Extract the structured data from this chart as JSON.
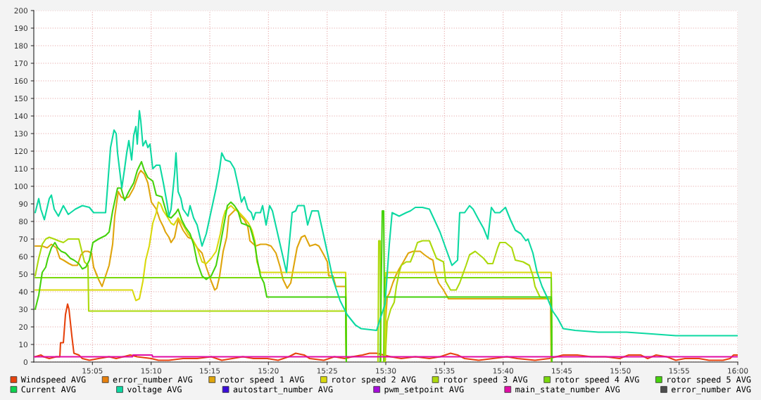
{
  "chart_data": {
    "type": "line",
    "xlim": [
      15.0,
      16.0
    ],
    "xticks": [
      {
        "value": 15.0833,
        "label": "15:05"
      },
      {
        "value": 15.1667,
        "label": "15:10"
      },
      {
        "value": 15.25,
        "label": "15:15"
      },
      {
        "value": 15.3333,
        "label": "15:20"
      },
      {
        "value": 15.4167,
        "label": "15:25"
      },
      {
        "value": 15.5,
        "label": "15:30"
      },
      {
        "value": 15.5833,
        "label": "15:35"
      },
      {
        "value": 15.6667,
        "label": "15:40"
      },
      {
        "value": 15.75,
        "label": "15:45"
      },
      {
        "value": 15.8333,
        "label": "15:50"
      },
      {
        "value": 15.9167,
        "label": "15:55"
      },
      {
        "value": 16.0,
        "label": "16:00"
      }
    ],
    "ylim": [
      0,
      200
    ],
    "yticks": [
      0,
      10,
      20,
      30,
      40,
      50,
      60,
      70,
      80,
      90,
      100,
      110,
      120,
      130,
      140,
      150,
      160,
      170,
      180,
      190,
      200
    ],
    "grid": true,
    "legend": "bottom",
    "series": [
      {
        "name": "Windspeed AVG",
        "color": "#e6420c",
        "x": [
          15.002,
          15.01,
          15.014,
          15.022,
          15.032,
          15.037,
          15.038,
          15.042,
          15.045,
          15.048,
          15.05,
          15.054,
          15.057,
          15.064,
          15.069,
          15.079,
          15.092,
          15.107,
          15.117,
          15.127,
          15.137,
          15.147,
          15.167,
          15.177,
          15.192,
          15.212,
          15.232,
          15.252,
          15.267,
          15.282,
          15.297,
          15.312,
          15.332,
          15.347,
          15.362,
          15.372,
          15.384,
          15.392,
          15.412,
          15.427,
          15.442,
          15.452,
          15.467,
          15.477,
          15.487,
          15.497,
          15.507,
          15.522,
          15.542,
          15.562,
          15.577,
          15.592,
          15.602,
          15.612,
          15.632,
          15.652,
          15.672,
          15.687,
          15.712,
          15.732,
          15.752,
          15.772,
          15.792,
          15.812,
          15.832,
          15.845,
          15.862,
          15.872,
          15.884,
          15.899,
          15.912,
          15.925,
          15.945,
          15.959,
          15.979,
          15.989,
          15.994,
          16.0
        ],
        "values": [
          3,
          4,
          3,
          2,
          3,
          3,
          11,
          11,
          27,
          33,
          30,
          15,
          5,
          4,
          2,
          1,
          2,
          3,
          2,
          3,
          4,
          3,
          2,
          1,
          1,
          2,
          2,
          3,
          1,
          2,
          3,
          2,
          2,
          1,
          3,
          5,
          4,
          2,
          1,
          3,
          2,
          3,
          4,
          5,
          5,
          4,
          3,
          2,
          3,
          2,
          3,
          5,
          4,
          2,
          1,
          2,
          3,
          2,
          1,
          2,
          4,
          4,
          3,
          3,
          2,
          4,
          4,
          2,
          4,
          3,
          1,
          2,
          2,
          1,
          1,
          2,
          4,
          4
        ]
      },
      {
        "name": "error_number AVG",
        "color": "#e8800c"
      },
      {
        "name": "rotor speed 1 AVG",
        "color": "#dfa50c",
        "x": [
          15.002,
          15.012,
          15.019,
          15.025,
          15.032,
          15.037,
          15.042,
          15.05,
          15.055,
          15.062,
          15.067,
          15.072,
          15.077,
          15.082,
          15.085,
          15.092,
          15.097,
          15.102,
          15.107,
          15.112,
          15.115,
          15.12,
          15.124,
          15.129,
          15.135,
          15.142,
          15.149,
          15.152,
          15.157,
          15.162,
          15.167,
          15.174,
          15.179,
          15.184,
          15.187,
          15.192,
          15.195,
          15.2,
          15.205,
          15.212,
          15.219,
          15.225,
          15.232,
          15.239,
          15.245,
          15.252,
          15.257,
          15.26,
          15.264,
          15.269,
          15.274,
          15.277,
          15.282,
          15.287,
          15.29,
          15.294,
          15.299,
          15.304,
          15.307,
          15.315,
          15.322,
          15.33,
          15.337,
          15.344,
          15.35,
          15.354,
          15.36,
          15.365,
          15.369,
          15.374,
          15.38,
          15.385,
          15.392,
          15.4,
          15.405,
          15.412,
          15.417,
          15.419,
          15.425,
          15.429,
          15.443,
          15.444,
          15.47,
          15.499,
          15.5,
          15.502,
          15.505,
          15.51,
          15.514,
          15.519,
          15.525,
          15.532,
          15.539,
          15.549,
          15.555,
          15.562,
          15.567,
          15.57,
          15.575,
          15.582,
          15.589,
          15.734,
          15.735
        ],
        "values": [
          66,
          66,
          65,
          67,
          65,
          59,
          58,
          56,
          55,
          55,
          61,
          63,
          63,
          62,
          54,
          47,
          43,
          49,
          55,
          67,
          83,
          97,
          94,
          93,
          94,
          99,
          107,
          109,
          107,
          102,
          91,
          87,
          81,
          77,
          74,
          71,
          68,
          71,
          81,
          75,
          71,
          70,
          65,
          62,
          54,
          46,
          41,
          42,
          49,
          63,
          71,
          83,
          85,
          87,
          86,
          83,
          81,
          77,
          69,
          66,
          67,
          67,
          66,
          62,
          54,
          47,
          42,
          45,
          54,
          65,
          71,
          72,
          66,
          67,
          66,
          61,
          57,
          49,
          49,
          43,
          43,
          0,
          null,
          0,
          25,
          37,
          39,
          45,
          49,
          53,
          57,
          62,
          63,
          63,
          61,
          59,
          58,
          51,
          45,
          41,
          36,
          36,
          0
        ]
      },
      {
        "name": "rotor speed 2 AVG",
        "color": "#d9d90c",
        "x": [
          15.002,
          15.14,
          15.145,
          15.15,
          15.155,
          15.159,
          15.164,
          15.169,
          15.174,
          15.177,
          15.18,
          15.184,
          15.189,
          15.195,
          15.199,
          15.205,
          15.212,
          15.219,
          15.225,
          15.232,
          15.239,
          15.245,
          15.252,
          15.259,
          15.265,
          15.269,
          15.272,
          15.28,
          15.285,
          15.292,
          15.299,
          15.305,
          15.31,
          15.314,
          15.317,
          15.322,
          15.443,
          15.444,
          15.47,
          15.499,
          15.5,
          15.735,
          15.736
        ],
        "values": [
          41,
          41,
          35,
          36,
          46,
          58,
          66,
          79,
          85,
          91,
          90,
          86,
          83,
          79,
          78,
          82,
          78,
          73,
          70,
          65,
          57,
          56,
          59,
          63,
          73,
          82,
          86,
          89,
          87,
          85,
          82,
          79,
          75,
          69,
          57,
          51,
          51,
          0,
          null,
          0,
          51,
          51,
          0
        ]
      },
      {
        "name": "rotor speed 3 AVG",
        "color": "#acd90c",
        "x": [
          15.002,
          15.007,
          15.012,
          15.017,
          15.022,
          15.029,
          15.035,
          15.042,
          15.049,
          15.059,
          15.064,
          15.067,
          15.072,
          15.077,
          15.078,
          15.443,
          15.444,
          15.47,
          15.489,
          15.49,
          15.492,
          15.493,
          15.496,
          15.499,
          15.502,
          15.507,
          15.512,
          15.515,
          15.519,
          15.522,
          15.529,
          15.535,
          15.54,
          15.545,
          15.552,
          15.562,
          15.572,
          15.582,
          15.585,
          15.592,
          15.6,
          15.605,
          15.614,
          15.619,
          15.627,
          15.639,
          15.645,
          15.652,
          15.659,
          15.662,
          15.67,
          15.679,
          15.684,
          15.695,
          15.704,
          15.709,
          15.712,
          15.719,
          15.732,
          15.735,
          15.736
        ],
        "values": [
          49,
          59,
          67,
          70,
          71,
          70,
          69,
          68,
          70,
          70,
          70,
          65,
          57,
          55,
          29,
          29,
          0,
          null,
          0,
          69,
          69,
          0,
          null,
          0,
          23,
          30,
          34,
          43,
          51,
          55,
          57,
          57,
          62,
          68,
          69,
          69,
          59,
          57,
          46,
          41,
          41,
          45,
          55,
          61,
          63,
          59,
          56,
          56,
          65,
          68,
          68,
          65,
          58,
          57,
          55,
          49,
          43,
          37,
          36,
          36,
          0
        ]
      },
      {
        "name": "rotor speed 4 AVG",
        "color": "#7ad90c",
        "x": [
          15.002,
          15.443,
          15.444,
          15.47,
          15.497,
          15.498,
          15.735,
          15.736
        ],
        "values": [
          48,
          48,
          0,
          null,
          0,
          48,
          48,
          0
        ]
      },
      {
        "name": "rotor speed 5 AVG",
        "color": "#45d20c",
        "x": [
          15.002,
          15.007,
          15.012,
          15.017,
          15.02,
          15.025,
          15.03,
          15.034,
          15.039,
          15.045,
          15.052,
          15.057,
          15.064,
          15.069,
          15.074,
          15.079,
          15.084,
          15.092,
          15.102,
          15.107,
          15.112,
          15.119,
          15.124,
          15.129,
          15.135,
          15.142,
          15.147,
          15.153,
          15.157,
          15.162,
          15.169,
          15.174,
          15.182,
          15.187,
          15.19,
          15.195,
          15.202,
          15.205,
          15.21,
          15.215,
          15.222,
          15.227,
          15.232,
          15.239,
          15.245,
          15.252,
          15.259,
          15.265,
          15.27,
          15.275,
          15.28,
          15.285,
          15.29,
          15.295,
          15.302,
          15.307,
          15.31,
          15.314,
          15.317,
          15.322,
          15.327,
          15.331,
          15.443,
          15.444,
          15.47,
          15.492,
          15.495,
          15.497,
          15.498,
          15.735,
          15.736
        ],
        "values": [
          30,
          38,
          51,
          54,
          59,
          65,
          68,
          65,
          63,
          62,
          59,
          58,
          56,
          53,
          54,
          58,
          68,
          70,
          72,
          74,
          86,
          99,
          99,
          92,
          97,
          102,
          109,
          114,
          109,
          105,
          103,
          95,
          94,
          87,
          83,
          82,
          85,
          87,
          81,
          77,
          73,
          67,
          57,
          49,
          47,
          49,
          55,
          67,
          78,
          89,
          91,
          89,
          86,
          79,
          78,
          77,
          73,
          67,
          59,
          49,
          45,
          37,
          37,
          0,
          null,
          0,
          86,
          86,
          37,
          37,
          0
        ]
      },
      {
        "name": "Current AVG",
        "color": "#0cd24e"
      },
      {
        "name": "voltage AVG",
        "color": "#0cd9a2",
        "x": [
          15.002,
          15.007,
          15.01,
          15.015,
          15.022,
          15.025,
          15.029,
          15.035,
          15.042,
          15.049,
          15.059,
          15.069,
          15.079,
          15.085,
          15.102,
          15.109,
          15.114,
          15.117,
          15.119,
          15.125,
          15.129,
          15.132,
          15.135,
          15.139,
          15.142,
          15.145,
          15.147,
          15.15,
          15.152,
          15.155,
          15.159,
          15.162,
          15.165,
          15.169,
          15.174,
          15.179,
          15.184,
          15.189,
          15.192,
          15.195,
          15.2,
          15.202,
          15.205,
          15.209,
          15.212,
          15.219,
          15.222,
          15.227,
          15.232,
          15.239,
          15.245,
          15.252,
          15.259,
          15.264,
          15.267,
          15.272,
          15.279,
          15.285,
          15.29,
          15.295,
          15.299,
          15.304,
          15.309,
          15.312,
          15.315,
          15.322,
          15.325,
          15.33,
          15.335,
          15.339,
          15.359,
          15.367,
          15.372,
          15.375,
          15.384,
          15.389,
          15.395,
          15.404,
          15.415,
          15.425,
          15.435,
          15.445,
          15.457,
          15.465,
          15.487,
          15.49,
          15.499,
          15.505,
          15.509,
          15.519,
          15.529,
          15.535,
          15.542,
          15.552,
          15.562,
          15.569,
          15.577,
          15.585,
          15.594,
          15.602,
          15.605,
          15.612,
          15.619,
          15.624,
          15.632,
          15.639,
          15.645,
          15.65,
          15.655,
          15.662,
          15.67,
          15.677,
          15.684,
          15.692,
          15.699,
          15.702,
          15.709,
          15.715,
          15.722,
          15.729,
          15.737,
          15.744,
          15.752,
          15.769,
          15.802,
          15.842,
          15.878,
          15.912,
          16.0
        ],
        "values": [
          85,
          93,
          87,
          81,
          93,
          95,
          87,
          83,
          89,
          84,
          87,
          89,
          88,
          85,
          85,
          122,
          132,
          130,
          119,
          99,
          110,
          119,
          126,
          115,
          129,
          134,
          124,
          143,
          137,
          123,
          126,
          122,
          124,
          110,
          112,
          112,
          102,
          91,
          83,
          87,
          107,
          119,
          97,
          93,
          87,
          83,
          89,
          82,
          78,
          66,
          73,
          86,
          99,
          110,
          119,
          115,
          114,
          110,
          101,
          91,
          94,
          87,
          85,
          81,
          85,
          85,
          89,
          78,
          89,
          86,
          51,
          85,
          86,
          89,
          89,
          78,
          86,
          86,
          66,
          47,
          35,
          27,
          21,
          19,
          18,
          22,
          33,
          67,
          85,
          83,
          85,
          86,
          88,
          88,
          87,
          81,
          74,
          65,
          55,
          58,
          85,
          85,
          89,
          87,
          81,
          76,
          70,
          88,
          85,
          85,
          88,
          81,
          75,
          73,
          69,
          70,
          62,
          51,
          43,
          37,
          29,
          25,
          19,
          18,
          17,
          17,
          16,
          15,
          15
        ]
      },
      {
        "name": "autostart_number AVG",
        "color": "#3a0cd9"
      },
      {
        "name": "pwm_setpoint AVG",
        "color": "#a50cd9"
      },
      {
        "name": "main_state_number AVG",
        "color": "#e00ca5",
        "x": [
          15.0,
          15.14,
          15.141,
          15.168,
          15.169,
          16.0
        ],
        "values": [
          3,
          3,
          4,
          4,
          3,
          3
        ]
      },
      {
        "name": "error_number AVG",
        "color": "#4d4d4d"
      }
    ]
  }
}
